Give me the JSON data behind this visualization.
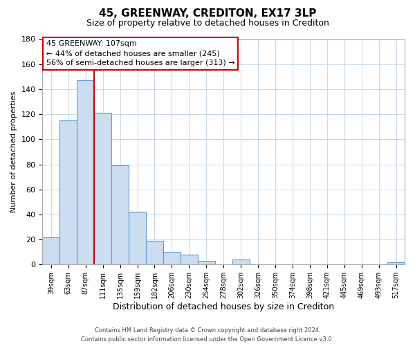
{
  "title": "45, GREENWAY, CREDITON, EX17 3LP",
  "subtitle": "Size of property relative to detached houses in Crediton",
  "xlabel": "Distribution of detached houses by size in Crediton",
  "ylabel": "Number of detached properties",
  "bar_labels": [
    "39sqm",
    "63sqm",
    "87sqm",
    "111sqm",
    "135sqm",
    "159sqm",
    "182sqm",
    "206sqm",
    "230sqm",
    "254sqm",
    "278sqm",
    "302sqm",
    "326sqm",
    "350sqm",
    "374sqm",
    "398sqm",
    "421sqm",
    "445sqm",
    "469sqm",
    "493sqm",
    "517sqm"
  ],
  "bar_values": [
    22,
    115,
    147,
    121,
    79,
    42,
    19,
    10,
    8,
    3,
    0,
    4,
    0,
    0,
    0,
    0,
    0,
    0,
    0,
    0,
    2
  ],
  "bar_color": "#ccddf0",
  "bar_edge_color": "#5b9bd5",
  "vline_color": "#cc0000",
  "vline_x_index": 3,
  "ylim": [
    0,
    180
  ],
  "yticks": [
    0,
    20,
    40,
    60,
    80,
    100,
    120,
    140,
    160,
    180
  ],
  "annotation_title": "45 GREENWAY: 107sqm",
  "annotation_line1": "← 44% of detached houses are smaller (245)",
  "annotation_line2": "56% of semi-detached houses are larger (313) →",
  "footer_line1": "Contains HM Land Registry data © Crown copyright and database right 2024.",
  "footer_line2": "Contains public sector information licensed under the Open Government Licence v3.0.",
  "background_color": "#ffffff",
  "grid_color": "#c8d8e8"
}
